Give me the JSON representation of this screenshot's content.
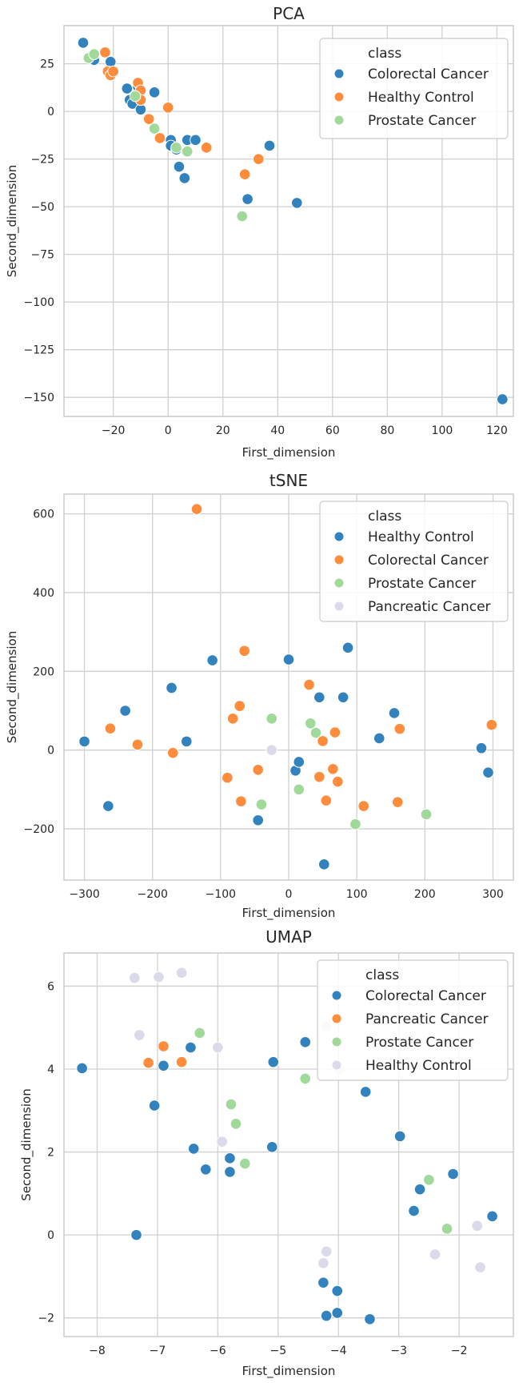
{
  "chart_data": [
    {
      "type": "scatter",
      "title": "PCA",
      "xlabel": "First_dimension",
      "ylabel": "Second_dimension",
      "xlim": [
        -38,
        126
      ],
      "ylim": [
        -160,
        45
      ],
      "xticks": [
        -20,
        0,
        20,
        40,
        60,
        80,
        100,
        120
      ],
      "yticks": [
        25,
        0,
        -25,
        -50,
        -75,
        -100,
        -125,
        -150
      ],
      "grid": true,
      "legend": {
        "title": "class",
        "placement": "top-right"
      },
      "series": [
        {
          "name": "Colorectal Cancer",
          "color": "#3182bd",
          "points": [
            [
              -31,
              36
            ],
            [
              -27,
              27
            ],
            [
              -21,
              26
            ],
            [
              -15,
              12
            ],
            [
              -14,
              6
            ],
            [
              -13,
              4
            ],
            [
              -11,
              13
            ],
            [
              -10,
              1
            ],
            [
              -5,
              10
            ],
            [
              1,
              -15
            ],
            [
              1,
              -18
            ],
            [
              3,
              -20
            ],
            [
              4,
              -29
            ],
            [
              6,
              -35
            ],
            [
              7,
              -15
            ],
            [
              10,
              -15
            ],
            [
              29,
              -46
            ],
            [
              37,
              -18
            ],
            [
              47,
              -48
            ],
            [
              122,
              -151
            ]
          ]
        },
        {
          "name": "Healthy Control",
          "color": "#fd8d3c",
          "points": [
            [
              -23,
              31
            ],
            [
              -22,
              21
            ],
            [
              -21,
              19
            ],
            [
              -20,
              21
            ],
            [
              -11,
              15
            ],
            [
              -10,
              11
            ],
            [
              -10,
              6
            ],
            [
              -7,
              -4
            ],
            [
              -3,
              -14
            ],
            [
              0,
              2
            ],
            [
              14,
              -19
            ],
            [
              28,
              -33
            ],
            [
              33,
              -25
            ]
          ]
        },
        {
          "name": "Prostate Cancer",
          "color": "#a1d99b",
          "points": [
            [
              -29,
              28
            ],
            [
              -27,
              30
            ],
            [
              -12,
              8
            ],
            [
              -5,
              -9
            ],
            [
              3,
              -19
            ],
            [
              7,
              -21
            ],
            [
              27,
              -55
            ]
          ]
        }
      ]
    },
    {
      "type": "scatter",
      "title": "tSNE",
      "xlabel": "First_dimension",
      "ylabel": "Second_dimension",
      "xlim": [
        -330,
        330
      ],
      "ylim": [
        -330,
        650
      ],
      "xticks": [
        -300,
        -200,
        -100,
        0,
        100,
        200,
        300
      ],
      "yticks": [
        600,
        400,
        200,
        0,
        -200
      ],
      "grid": true,
      "legend": {
        "title": "class",
        "placement": "top-right"
      },
      "series": [
        {
          "name": "Healthy Control",
          "color": "#3182bd",
          "points": [
            [
              -300,
              22
            ],
            [
              -265,
              -142
            ],
            [
              -240,
              100
            ],
            [
              -172,
              158
            ],
            [
              -150,
              22
            ],
            [
              -112,
              228
            ],
            [
              -45,
              -178
            ],
            [
              0,
              230
            ],
            [
              10,
              -52
            ],
            [
              15,
              -30
            ],
            [
              45,
              134
            ],
            [
              52,
              -290
            ],
            [
              80,
              134
            ],
            [
              87,
              260
            ],
            [
              133,
              30
            ],
            [
              155,
              94
            ],
            [
              283,
              5
            ],
            [
              293,
              -57
            ]
          ]
        },
        {
          "name": "Colorectal Cancer",
          "color": "#fd8d3c",
          "points": [
            [
              -262,
              55
            ],
            [
              -222,
              14
            ],
            [
              -170,
              -7
            ],
            [
              -135,
              612
            ],
            [
              -90,
              -70
            ],
            [
              -82,
              80
            ],
            [
              -72,
              112
            ],
            [
              -70,
              -130
            ],
            [
              -65,
              252
            ],
            [
              -45,
              -50
            ],
            [
              30,
              166
            ],
            [
              45,
              -68
            ],
            [
              50,
              23
            ],
            [
              55,
              -128
            ],
            [
              65,
              -48
            ],
            [
              68,
              45
            ],
            [
              72,
              -80
            ],
            [
              110,
              -142
            ],
            [
              160,
              -132
            ],
            [
              163,
              54
            ],
            [
              298,
              64
            ]
          ]
        },
        {
          "name": "Prostate Cancer",
          "color": "#a1d99b",
          "points": [
            [
              -40,
              -138
            ],
            [
              -25,
              80
            ],
            [
              15,
              -100
            ],
            [
              32,
              68
            ],
            [
              40,
              44
            ],
            [
              98,
              -188
            ],
            [
              202,
              -163
            ]
          ]
        },
        {
          "name": "Pancreatic Cancer",
          "color": "#dadaeb",
          "points": [
            [
              -25,
              0
            ]
          ]
        }
      ]
    },
    {
      "type": "scatter",
      "title": "UMAP",
      "xlabel": "First_dimension",
      "ylabel": "Second_dimension",
      "xlim": [
        -8.55,
        -1.1
      ],
      "ylim": [
        -2.45,
        6.8
      ],
      "xticks": [
        -8,
        -7,
        -6,
        -5,
        -4,
        -3,
        -2
      ],
      "yticks": [
        6,
        4,
        2,
        0,
        -2
      ],
      "grid": true,
      "legend": {
        "title": "class",
        "placement": "top-right"
      },
      "series": [
        {
          "name": "Colorectal Cancer",
          "color": "#3182bd",
          "points": [
            [
              -8.25,
              4.02
            ],
            [
              -7.35,
              0
            ],
            [
              -7.05,
              3.12
            ],
            [
              -6.9,
              4.08
            ],
            [
              -6.45,
              4.52
            ],
            [
              -6.4,
              2.08
            ],
            [
              -6.2,
              1.58
            ],
            [
              -5.8,
              1.85
            ],
            [
              -5.8,
              1.52
            ],
            [
              -5.1,
              2.12
            ],
            [
              -5.08,
              4.17
            ],
            [
              -4.55,
              4.65
            ],
            [
              -4.25,
              -1.15
            ],
            [
              -4.2,
              -1.95
            ],
            [
              -4.02,
              -1.88
            ],
            [
              -4.02,
              -1.35
            ],
            [
              -3.55,
              3.45
            ],
            [
              -3.48,
              -2.03
            ],
            [
              -2.98,
              2.38
            ],
            [
              -2.75,
              0.58
            ],
            [
              -2.65,
              1.1
            ],
            [
              -2.1,
              1.47
            ],
            [
              -1.45,
              0.45
            ]
          ]
        },
        {
          "name": "Pancreatic Cancer",
          "color": "#fd8d3c",
          "points": [
            [
              -7.15,
              4.15
            ],
            [
              -6.9,
              4.55
            ],
            [
              -6.6,
              4.17
            ]
          ]
        },
        {
          "name": "Prostate Cancer",
          "color": "#a1d99b",
          "points": [
            [
              -6.3,
              4.87
            ],
            [
              -5.78,
              3.15
            ],
            [
              -5.7,
              2.68
            ],
            [
              -5.55,
              1.72
            ],
            [
              -4.55,
              3.77
            ],
            [
              -2.5,
              1.33
            ],
            [
              -2.2,
              0.15
            ]
          ]
        },
        {
          "name": "Healthy Control",
          "color": "#dadaeb",
          "points": [
            [
              -7.38,
              6.2
            ],
            [
              -7.3,
              4.82
            ],
            [
              -6.98,
              6.22
            ],
            [
              -6.6,
              6.32
            ],
            [
              -6.0,
              4.52
            ],
            [
              -5.93,
              2.25
            ],
            [
              -4.25,
              -0.68
            ],
            [
              -4.2,
              -0.4
            ],
            [
              -4.2,
              5.02
            ],
            [
              -3.98,
              4.0
            ],
            [
              -2.4,
              -0.47
            ],
            [
              -1.7,
              0.22
            ],
            [
              -1.65,
              -0.78
            ]
          ]
        }
      ]
    }
  ]
}
